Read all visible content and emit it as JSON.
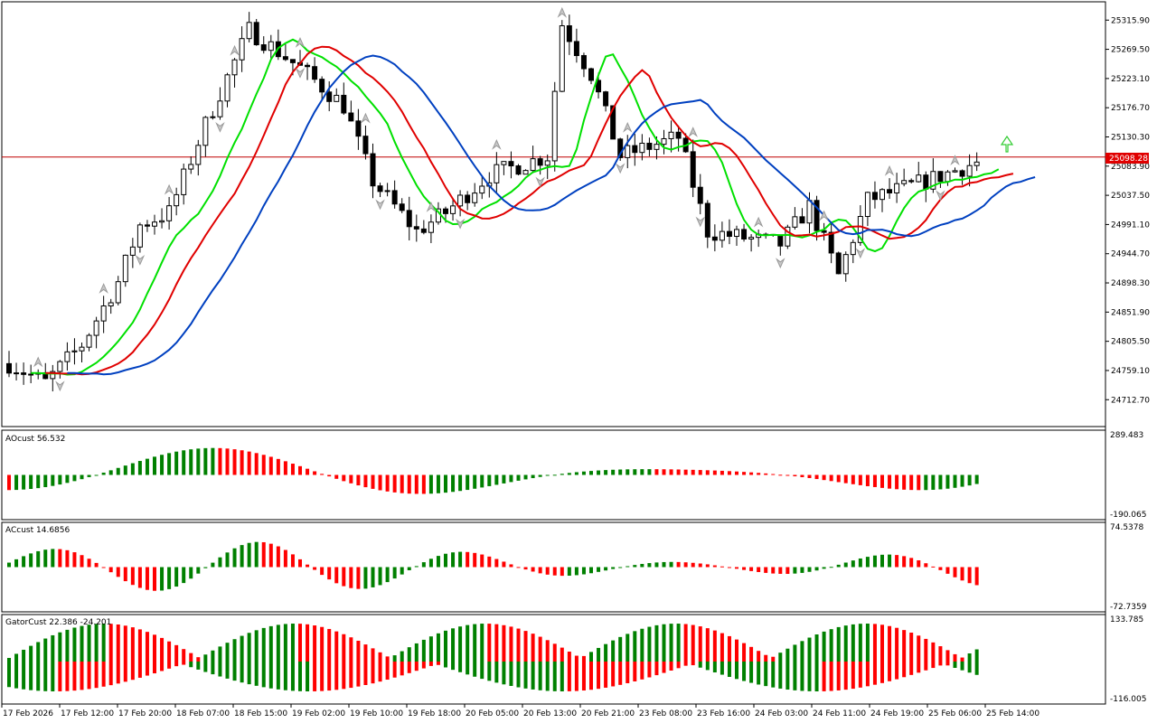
{
  "chart_data": [
    {
      "type": "candlestick",
      "price_axis_labels": [
        "25315.90",
        "25269.50",
        "25223.10",
        "25176.70",
        "25130.30",
        "25083.90",
        "25037.50",
        "24991.10",
        "24944.70",
        "24898.30",
        "24851.90",
        "24805.50",
        "24759.10",
        "24712.70"
      ],
      "ylim": [
        24670,
        25345
      ],
      "current_price": "25098.28",
      "signal_arrow": "up-arrow-green",
      "ma_colors": {
        "fast": "#00e000",
        "mid": "#e00000",
        "slow": "#0040c0"
      }
    },
    {
      "type": "bar",
      "indicator_label": "AOcust 56.532",
      "axis_labels": [
        "289.483",
        "-190.065"
      ],
      "ylim": [
        -190.065,
        289.483
      ],
      "up_color": "#008000",
      "down_color": "#ff0000"
    },
    {
      "type": "bar",
      "indicator_label": "ACcust 14.6856",
      "axis_labels": [
        "74.5378",
        "-72.7359"
      ],
      "ylim": [
        -72.7359,
        74.5378
      ],
      "up_color": "#008000",
      "down_color": "#ff0000"
    },
    {
      "type": "bar",
      "indicator_label": "GatorCust 22.386 -24.201",
      "axis_labels": [
        "133.785",
        "-116.005"
      ],
      "ylim": [
        -116.005,
        133.785
      ],
      "up_color": "#008000",
      "down_color": "#ff0000"
    }
  ],
  "time_axis": [
    "17 Feb 2026",
    "17 Feb 12:00",
    "17 Feb 20:00",
    "18 Feb 07:00",
    "18 Feb 15:00",
    "19 Feb 02:00",
    "19 Feb 10:00",
    "19 Feb 18:00",
    "20 Feb 05:00",
    "20 Feb 13:00",
    "20 Feb 21:00",
    "23 Feb 08:00",
    "23 Feb 16:00",
    "24 Feb 03:00",
    "24 Feb 11:00",
    "24 Feb 19:00",
    "25 Feb 06:00",
    "25 Feb 14:00"
  ]
}
